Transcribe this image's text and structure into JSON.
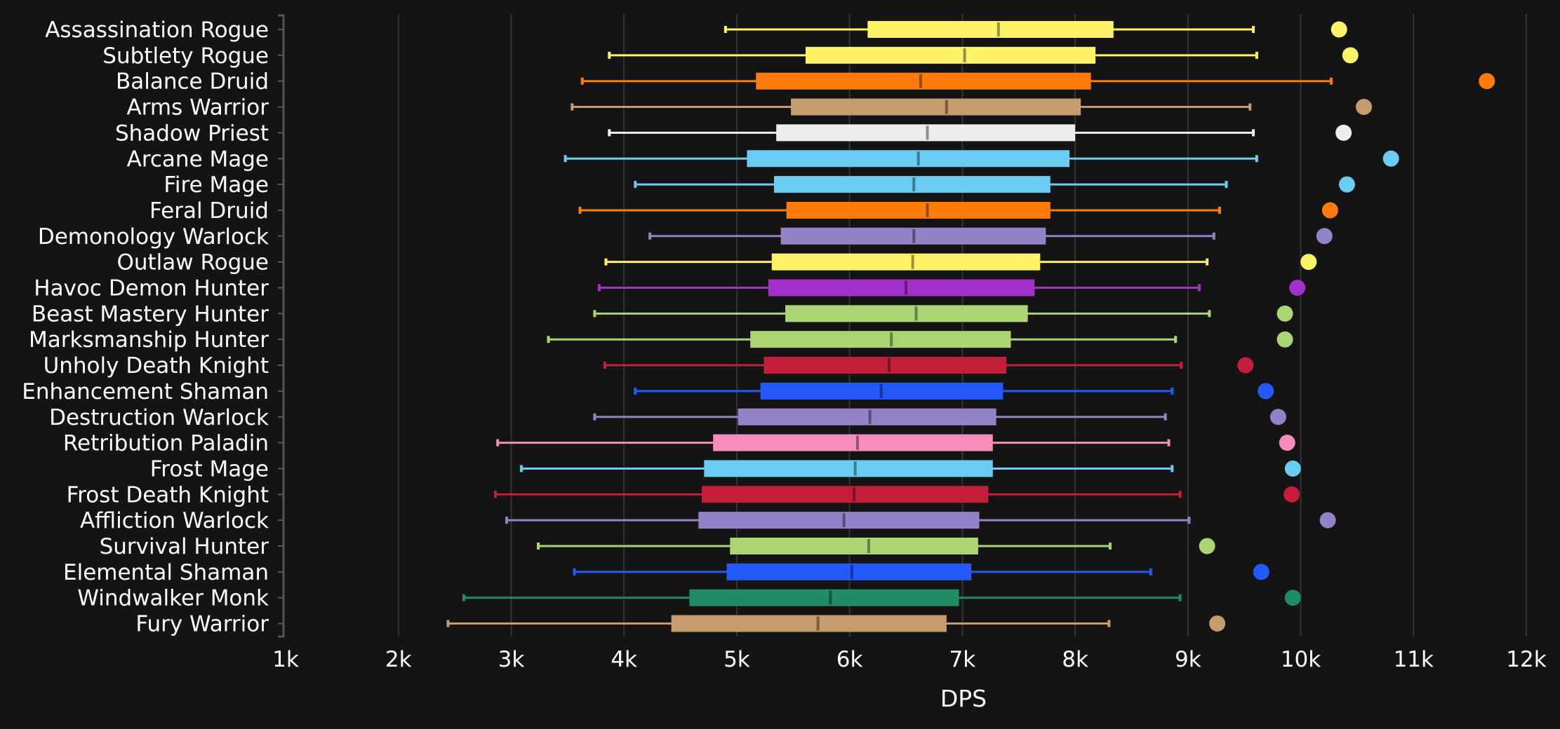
{
  "chart_data": {
    "type": "box",
    "orientation": "horizontal",
    "xlabel": "DPS",
    "xlim": [
      1000,
      12000
    ],
    "x_ticks": [
      "1k",
      "2k",
      "3k",
      "4k",
      "5k",
      "6k",
      "7k",
      "8k",
      "9k",
      "10k",
      "11k",
      "12k"
    ],
    "x_tick_values": [
      1000,
      2000,
      3000,
      4000,
      5000,
      6000,
      7000,
      8000,
      9000,
      10000,
      11000,
      12000
    ],
    "grid": "vertical",
    "categories": [
      "Assassination Rogue",
      "Subtlety Rogue",
      "Balance Druid",
      "Arms Warrior",
      "Shadow Priest",
      "Arcane Mage",
      "Fire Mage",
      "Feral Druid",
      "Demonology Warlock",
      "Outlaw Rogue",
      "Havoc Demon Hunter",
      "Beast Mastery Hunter",
      "Marksmanship Hunter",
      "Unholy Death Knight",
      "Enhancement Shaman",
      "Destruction Warlock",
      "Retribution Paladin",
      "Frost Mage",
      "Frost Death Knight",
      "Affliction Warlock",
      "Survival Hunter",
      "Elemental Shaman",
      "Windwalker Monk",
      "Fury Warrior"
    ],
    "min": [
      4900,
      3870,
      3630,
      3540,
      3870,
      3480,
      4100,
      3610,
      4230,
      3840,
      3780,
      3740,
      3330,
      3830,
      4100,
      3740,
      2880,
      3090,
      2860,
      2960,
      3240,
      3560,
      2580,
      2440
    ],
    "q1": [
      6160,
      5610,
      5170,
      5480,
      5350,
      5090,
      5330,
      5440,
      5390,
      5310,
      5280,
      5430,
      5120,
      5240,
      5210,
      5010,
      4790,
      4710,
      4690,
      4660,
      4940,
      4910,
      4580,
      4420
    ],
    "median": [
      7320,
      7020,
      6630,
      6860,
      6690,
      6610,
      6570,
      6690,
      6570,
      6560,
      6500,
      6590,
      6370,
      6350,
      6280,
      6180,
      6070,
      6050,
      6040,
      5950,
      6170,
      6020,
      5830,
      5720
    ],
    "q3": [
      8340,
      8180,
      8140,
      8050,
      8000,
      7950,
      7780,
      7780,
      7740,
      7690,
      7640,
      7580,
      7430,
      7390,
      7360,
      7300,
      7270,
      7270,
      7230,
      7150,
      7140,
      7080,
      6970,
      6860
    ],
    "max": [
      9580,
      9610,
      10270,
      9550,
      9580,
      9610,
      9340,
      9280,
      9230,
      9170,
      9100,
      9190,
      8890,
      8940,
      8860,
      8800,
      8830,
      8860,
      8930,
      9010,
      8310,
      8670,
      8930,
      8300
    ],
    "outlier": [
      10340,
      10440,
      11650,
      10560,
      10380,
      10800,
      10410,
      10260,
      10210,
      10070,
      9970,
      9860,
      9860,
      9510,
      9690,
      9800,
      9880,
      9930,
      9920,
      10240,
      9170,
      9650,
      9930,
      9260
    ],
    "colors": [
      "#fff468",
      "#fff468",
      "#ff7c0a",
      "#c69b6d",
      "#eeeeee",
      "#69ccf0",
      "#69ccf0",
      "#ff7c0a",
      "#9482c9",
      "#fff468",
      "#a330c9",
      "#abd473",
      "#abd473",
      "#c41e3a",
      "#2459ff",
      "#9482c9",
      "#f58cba",
      "#69ccf0",
      "#c41e3a",
      "#9482c9",
      "#abd473",
      "#2459ff",
      "#1f8c63",
      "#c69b6d"
    ]
  }
}
